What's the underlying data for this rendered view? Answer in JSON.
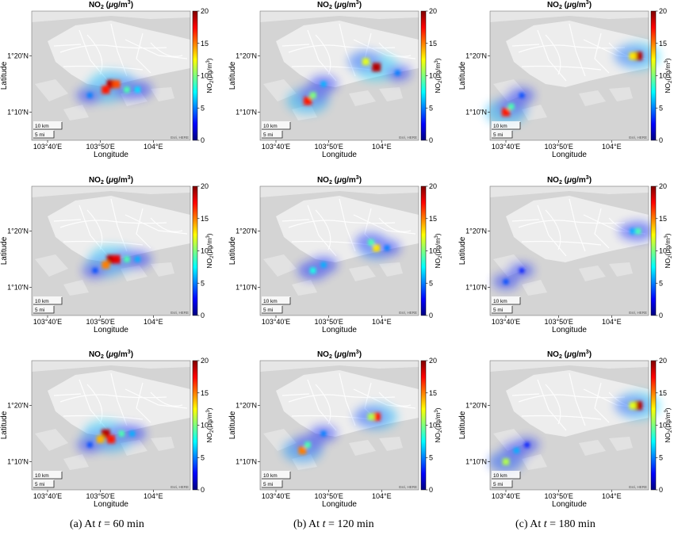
{
  "figure": {
    "panel_title_main": "NO",
    "panel_title_sub": "2",
    "panel_title_units_open": " (",
    "panel_title_mu": "μ",
    "panel_title_units_rest": "g/m",
    "panel_title_units_sup": "3",
    "panel_title_units_close": ")",
    "colorbar_label_main": "NO",
    "colorbar_label_sub": "2",
    "colorbar_label_units": "(μg/m",
    "colorbar_label_sup": "3",
    "colorbar_label_close": ")",
    "colorbar_ticks": [
      "0",
      "5",
      "10",
      "15",
      "20"
    ],
    "xlabel": "Longitude",
    "ylabel": "Latitude",
    "x_ticks": [
      "103°40'E",
      "103°50'E",
      "104°E"
    ],
    "y_ticks": [
      "1°20'N",
      "1°10'N"
    ],
    "scale_km": "10 km",
    "scale_mi": "5 mi",
    "attribution": "Esri, HERE",
    "captions": [
      {
        "prefix": "(a)  At ",
        "var": "t",
        "suffix": " = 60 min"
      },
      {
        "prefix": "(b)  At ",
        "var": "t",
        "suffix": " = 120 min"
      },
      {
        "prefix": "(c)  At ",
        "var": "t",
        "suffix": " = 180 min"
      }
    ],
    "colors": {
      "map_bg": "#d4d4d4",
      "land": "#ededed",
      "roads": "#ffffff",
      "colormap": [
        "#00007f",
        "#0000ff",
        "#007fff",
        "#00ffff",
        "#7fff7f",
        "#ffff00",
        "#ff7f00",
        "#ff0000",
        "#7f0000"
      ]
    }
  },
  "chart_data": [
    {
      "type": "heatmap",
      "panel": "row1-col1 (a)",
      "xlim": [
        "103°37'E",
        "104°07'E"
      ],
      "ylim": [
        "1°05'N",
        "1°28'N"
      ],
      "clim": [
        0,
        20
      ],
      "plume": [
        [
          "103°52'E",
          "1°15'N",
          19
        ],
        [
          "103°51'E",
          "1°14'N",
          17
        ],
        [
          "103°53'E",
          "1°15'N",
          16
        ],
        [
          "103°55'E",
          "1°14'N",
          9
        ],
        [
          "103°57'E",
          "1°14'N",
          7
        ],
        [
          "103°48'E",
          "1°13'N",
          5
        ]
      ]
    },
    {
      "type": "heatmap",
      "panel": "row1-col2 (b)",
      "xlim": [
        "103°37'E",
        "104°07'E"
      ],
      "ylim": [
        "1°05'N",
        "1°28'N"
      ],
      "clim": [
        0,
        20
      ],
      "plume": [
        [
          "103°59'E",
          "1°18'N",
          19
        ],
        [
          "103°57'E",
          "1°19'N",
          12
        ],
        [
          "103°46'E",
          "1°12'N",
          17
        ],
        [
          "103°47'E",
          "1°13'N",
          10
        ],
        [
          "103°49'E",
          "1°15'N",
          6
        ],
        [
          "104°03'E",
          "1°17'N",
          5
        ]
      ]
    },
    {
      "type": "heatmap",
      "panel": "row1-col3 (c)",
      "xlim": [
        "103°37'E",
        "104°07'E"
      ],
      "ylim": [
        "1°05'N",
        "1°28'N"
      ],
      "clim": [
        0,
        20
      ],
      "plume": [
        [
          "104°05'E",
          "1°20'N",
          19
        ],
        [
          "104°04'E",
          "1°20'N",
          13
        ],
        [
          "103°40'E",
          "1°10'N",
          17
        ],
        [
          "103°41'E",
          "1°11'N",
          9
        ],
        [
          "103°43'E",
          "1°13'N",
          4
        ]
      ]
    },
    {
      "type": "heatmap",
      "panel": "row2-col1 (a)",
      "xlim": [
        "103°37'E",
        "104°07'E"
      ],
      "ylim": [
        "1°05'N",
        "1°28'N"
      ],
      "clim": [
        0,
        20
      ],
      "plume": [
        [
          "103°52'E",
          "1°15'N",
          19
        ],
        [
          "103°53'E",
          "1°15'N",
          18
        ],
        [
          "103°51'E",
          "1°14'N",
          15
        ],
        [
          "103°55'E",
          "1°15'N",
          9
        ],
        [
          "103°57'E",
          "1°15'N",
          6
        ],
        [
          "103°49'E",
          "1°13'N",
          4
        ]
      ]
    },
    {
      "type": "heatmap",
      "panel": "row2-col2 (b)",
      "xlim": [
        "103°37'E",
        "104°07'E"
      ],
      "ylim": [
        "1°05'N",
        "1°28'N"
      ],
      "clim": [
        0,
        20
      ],
      "plume": [
        [
          "103°59'E",
          "1°17'N",
          13
        ],
        [
          "103°58'E",
          "1°18'N",
          9
        ],
        [
          "103°47'E",
          "1°13'N",
          8
        ],
        [
          "103°49'E",
          "1°14'N",
          6
        ],
        [
          "104°01'E",
          "1°17'N",
          5
        ]
      ]
    },
    {
      "type": "heatmap",
      "panel": "row2-col3 (c)",
      "xlim": [
        "103°37'E",
        "104°07'E"
      ],
      "ylim": [
        "1°05'N",
        "1°28'N"
      ],
      "clim": [
        0,
        20
      ],
      "plume": [
        [
          "104°05'E",
          "1°20'N",
          9
        ],
        [
          "104°04'E",
          "1°20'N",
          6
        ],
        [
          "103°40'E",
          "1°11'N",
          4
        ],
        [
          "103°43'E",
          "1°13'N",
          3
        ]
      ]
    },
    {
      "type": "heatmap",
      "panel": "row3-col1 (a)",
      "xlim": [
        "103°37'E",
        "104°07'E"
      ],
      "ylim": [
        "1°05'N",
        "1°28'N"
      ],
      "clim": [
        0,
        20
      ],
      "plume": [
        [
          "103°51'E",
          "1°15'N",
          19
        ],
        [
          "103°52'E",
          "1°14'N",
          17
        ],
        [
          "103°50'E",
          "1°14'N",
          14
        ],
        [
          "103°54'E",
          "1°15'N",
          9
        ],
        [
          "103°56'E",
          "1°15'N",
          6
        ],
        [
          "103°48'E",
          "1°13'N",
          4
        ]
      ]
    },
    {
      "type": "heatmap",
      "panel": "row3-col2 (b)",
      "xlim": [
        "103°37'E",
        "104°07'E"
      ],
      "ylim": [
        "1°05'N",
        "1°28'N"
      ],
      "clim": [
        0,
        20
      ],
      "plume": [
        [
          "103°59'E",
          "1°18'N",
          17
        ],
        [
          "103°58'E",
          "1°18'N",
          11
        ],
        [
          "103°45'E",
          "1°12'N",
          15
        ],
        [
          "103°46'E",
          "1°13'N",
          9
        ],
        [
          "103°49'E",
          "1°15'N",
          5
        ]
      ]
    },
    {
      "type": "heatmap",
      "panel": "row3-col3 (c)",
      "xlim": [
        "103°37'E",
        "104°07'E"
      ],
      "ylim": [
        "1°05'N",
        "1°28'N"
      ],
      "clim": [
        0,
        20
      ],
      "plume": [
        [
          "104°05'E",
          "1°20'N",
          19
        ],
        [
          "104°04'E",
          "1°20'N",
          12
        ],
        [
          "103°40'E",
          "1°10'N",
          11
        ],
        [
          "103°42'E",
          "1°12'N",
          6
        ],
        [
          "103°44'E",
          "1°13'N",
          3
        ]
      ]
    }
  ]
}
